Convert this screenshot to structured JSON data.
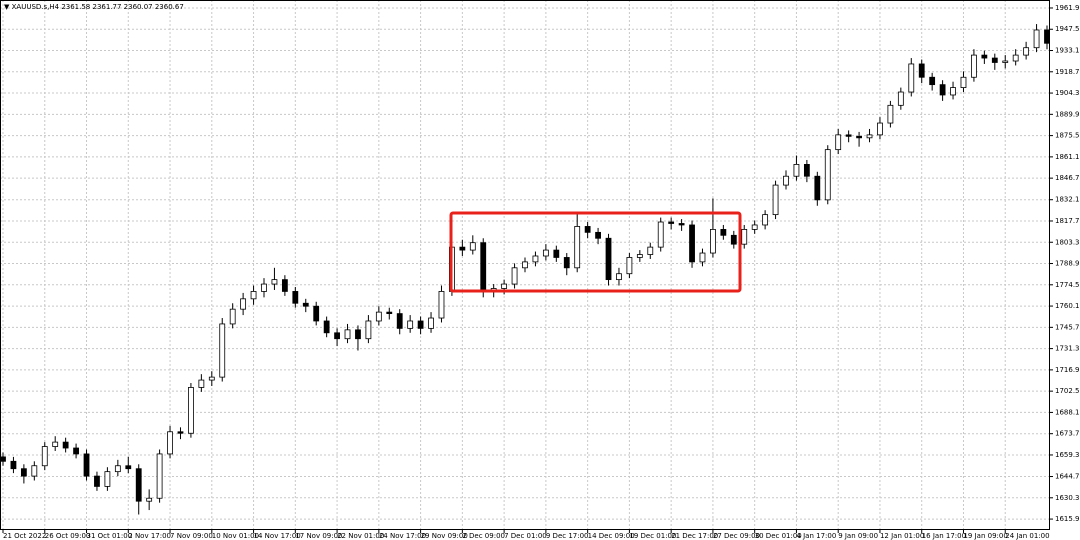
{
  "chart_data": {
    "type": "candlestick",
    "title": "▼ XAUUSD.s,H4  2361.58 2361.77 2360.07 2360.67",
    "categories": [
      "21 Oct 2022",
      null,
      null,
      null,
      "26 Oct 09:00",
      null,
      null,
      null,
      "31 Oct 01:00",
      null,
      null,
      null,
      "2 Nov 17:00",
      null,
      null,
      null,
      "7 Nov 09:00",
      null,
      null,
      null,
      "10 Nov 01:00",
      null,
      null,
      null,
      "14 Nov 17:00",
      null,
      null,
      null,
      "17 Nov 09:00",
      null,
      null,
      null,
      "22 Nov 01:00",
      null,
      null,
      null,
      "24 Nov 17:00",
      null,
      null,
      null,
      "29 Nov 09:00",
      null,
      null,
      null,
      "2 Dec 09:00",
      null,
      null,
      null,
      "7 Dec 01:00",
      null,
      null,
      null,
      "9 Dec 17:00",
      null,
      null,
      null,
      "14 Dec 09:00",
      null,
      null,
      null,
      "19 Dec 01:00",
      null,
      null,
      null,
      "21 Dec 17:00",
      null,
      null,
      null,
      "27 Dec 09:00",
      null,
      null,
      null,
      "30 Dec 01:00",
      null,
      null,
      null,
      "4 Jan 17:00",
      null,
      null,
      null,
      "9 Jan 09:00",
      null,
      null,
      null,
      "12 Jan 01:00",
      null,
      null,
      null,
      "16 Jan 17:00",
      null,
      null,
      null,
      "19 Jan 09:00",
      null,
      null,
      null,
      "24 Jan 01:00",
      null,
      null,
      null,
      null
    ],
    "candles": [
      [
        1658,
        1661,
        1652,
        1655
      ],
      [
        1655,
        1658,
        1647,
        1650
      ],
      [
        1650,
        1653,
        1640,
        1645
      ],
      [
        1645,
        1655,
        1642,
        1652
      ],
      [
        1652,
        1668,
        1649,
        1665
      ],
      [
        1665,
        1672,
        1662,
        1668
      ],
      [
        1668,
        1671,
        1661,
        1664
      ],
      [
        1664,
        1667,
        1657,
        1660
      ],
      [
        1660,
        1663,
        1642,
        1645
      ],
      [
        1645,
        1648,
        1635,
        1638
      ],
      [
        1638,
        1651,
        1635,
        1648
      ],
      [
        1648,
        1656,
        1645,
        1652
      ],
      [
        1652,
        1658,
        1647,
        1650
      ],
      [
        1650,
        1653,
        1619,
        1628
      ],
      [
        1628,
        1636,
        1622,
        1630
      ],
      [
        1630,
        1663,
        1627,
        1660
      ],
      [
        1660,
        1679,
        1657,
        1675
      ],
      [
        1675,
        1678,
        1670,
        1674
      ],
      [
        1674,
        1708,
        1671,
        1705
      ],
      [
        1705,
        1714,
        1702,
        1710
      ],
      [
        1710,
        1716,
        1706,
        1712
      ],
      [
        1712,
        1752,
        1709,
        1748
      ],
      [
        1748,
        1762,
        1745,
        1758
      ],
      [
        1758,
        1769,
        1754,
        1765
      ],
      [
        1765,
        1774,
        1761,
        1770
      ],
      [
        1770,
        1779,
        1766,
        1775
      ],
      [
        1775,
        1786,
        1771,
        1778
      ],
      [
        1778,
        1781,
        1767,
        1770
      ],
      [
        1770,
        1773,
        1759,
        1762
      ],
      [
        1762,
        1765,
        1756,
        1760
      ],
      [
        1760,
        1763,
        1747,
        1750
      ],
      [
        1750,
        1753,
        1739,
        1742
      ],
      [
        1742,
        1745,
        1733,
        1738
      ],
      [
        1738,
        1748,
        1735,
        1744
      ],
      [
        1744,
        1747,
        1730,
        1738
      ],
      [
        1738,
        1754,
        1735,
        1750
      ],
      [
        1750,
        1760,
        1747,
        1756
      ],
      [
        1756,
        1759,
        1751,
        1755
      ],
      [
        1755,
        1758,
        1741,
        1745
      ],
      [
        1745,
        1754,
        1742,
        1750
      ],
      [
        1750,
        1753,
        1741,
        1745
      ],
      [
        1745,
        1756,
        1742,
        1752
      ],
      [
        1752,
        1774,
        1749,
        1770
      ],
      [
        1770,
        1804,
        1767,
        1800
      ],
      [
        1800,
        1805,
        1794,
        1798
      ],
      [
        1798,
        1808,
        1795,
        1803
      ],
      [
        1803,
        1806,
        1766,
        1770
      ],
      [
        1770,
        1775,
        1766,
        1772
      ],
      [
        1772,
        1778,
        1768,
        1775
      ],
      [
        1775,
        1789,
        1772,
        1786
      ],
      [
        1786,
        1793,
        1783,
        1790
      ],
      [
        1790,
        1797,
        1787,
        1794
      ],
      [
        1794,
        1802,
        1791,
        1798
      ],
      [
        1798,
        1801,
        1790,
        1793
      ],
      [
        1793,
        1796,
        1781,
        1786
      ],
      [
        1786,
        1823,
        1783,
        1814
      ],
      [
        1814,
        1817,
        1806,
        1810
      ],
      [
        1810,
        1813,
        1802,
        1806
      ],
      [
        1806,
        1809,
        1774,
        1778
      ],
      [
        1778,
        1786,
        1774,
        1782
      ],
      [
        1782,
        1796,
        1779,
        1793
      ],
      [
        1793,
        1798,
        1790,
        1795
      ],
      [
        1795,
        1803,
        1792,
        1800
      ],
      [
        1800,
        1820,
        1797,
        1817
      ],
      [
        1817,
        1820,
        1812,
        1816
      ],
      [
        1816,
        1819,
        1811,
        1815
      ],
      [
        1815,
        1818,
        1786,
        1790
      ],
      [
        1790,
        1799,
        1787,
        1796
      ],
      [
        1796,
        1833,
        1793,
        1812
      ],
      [
        1812,
        1815,
        1805,
        1808
      ],
      [
        1808,
        1811,
        1799,
        1802
      ],
      [
        1802,
        1815,
        1799,
        1812
      ],
      [
        1812,
        1818,
        1809,
        1815
      ],
      [
        1815,
        1825,
        1812,
        1822
      ],
      [
        1822,
        1845,
        1819,
        1842
      ],
      [
        1842,
        1852,
        1839,
        1848
      ],
      [
        1848,
        1862,
        1845,
        1856
      ],
      [
        1856,
        1859,
        1844,
        1848
      ],
      [
        1848,
        1851,
        1828,
        1832
      ],
      [
        1832,
        1869,
        1829,
        1866
      ],
      [
        1866,
        1880,
        1863,
        1876
      ],
      [
        1876,
        1879,
        1871,
        1875
      ],
      [
        1875,
        1878,
        1868,
        1874
      ],
      [
        1874,
        1880,
        1871,
        1876
      ],
      [
        1876,
        1888,
        1873,
        1884
      ],
      [
        1884,
        1899,
        1881,
        1896
      ],
      [
        1896,
        1908,
        1893,
        1905
      ],
      [
        1905,
        1928,
        1902,
        1924
      ],
      [
        1924,
        1927,
        1911,
        1915
      ],
      [
        1915,
        1918,
        1906,
        1910
      ],
      [
        1910,
        1913,
        1899,
        1903
      ],
      [
        1903,
        1912,
        1900,
        1908
      ],
      [
        1908,
        1919,
        1905,
        1915
      ],
      [
        1915,
        1934,
        1912,
        1930
      ],
      [
        1930,
        1933,
        1924,
        1928
      ],
      [
        1928,
        1931,
        1920,
        1925
      ],
      [
        1925,
        1930,
        1921,
        1926
      ],
      [
        1926,
        1934,
        1923,
        1930
      ],
      [
        1930,
        1939,
        1927,
        1935
      ],
      [
        1935,
        1951,
        1932,
        1947
      ],
      [
        1947,
        1950,
        1934,
        1938
      ]
    ],
    "ylim": [
      1608.5,
      1967.3
    ],
    "yticks": [
      {
        "value": 1961.9,
        "label": "1961.90"
      },
      {
        "value": 1947.5,
        "label": "1947.50"
      },
      {
        "value": 1933.1,
        "label": "1933.10"
      },
      {
        "value": 1918.7,
        "label": "1918.70"
      },
      {
        "value": 1904.3,
        "label": "1904.30"
      },
      {
        "value": 1889.9,
        "label": "1889.90"
      },
      {
        "value": 1875.5,
        "label": "1875.50"
      },
      {
        "value": 1861.1,
        "label": "1861.10"
      },
      {
        "value": 1846.7,
        "label": "1846.70"
      },
      {
        "value": 1832.1,
        "label": "1832.10"
      },
      {
        "value": 1817.7,
        "label": "1817.70"
      },
      {
        "value": 1803.3,
        "label": "1803.30"
      },
      {
        "value": 1788.9,
        "label": "1788.90"
      },
      {
        "value": 1774.5,
        "label": "1774.50"
      },
      {
        "value": 1760.1,
        "label": "1760.10"
      },
      {
        "value": 1745.7,
        "label": "1745.70"
      },
      {
        "value": 1731.3,
        "label": "1731.30"
      },
      {
        "value": 1716.9,
        "label": "1716.90"
      },
      {
        "value": 1702.5,
        "label": "1702.50"
      },
      {
        "value": 1688.1,
        "label": "1688.10"
      },
      {
        "value": 1673.7,
        "label": "1673.70"
      },
      {
        "value": 1659.3,
        "label": "1659.30"
      },
      {
        "value": 1644.7,
        "label": "1644.70"
      },
      {
        "value": 1630.3,
        "label": "1630.30"
      },
      {
        "value": 1615.9,
        "label": "1615.90"
      }
    ],
    "grid": true,
    "up_color": "#ffffff",
    "down_color": "#000000",
    "outline_color": "#000000"
  }
}
